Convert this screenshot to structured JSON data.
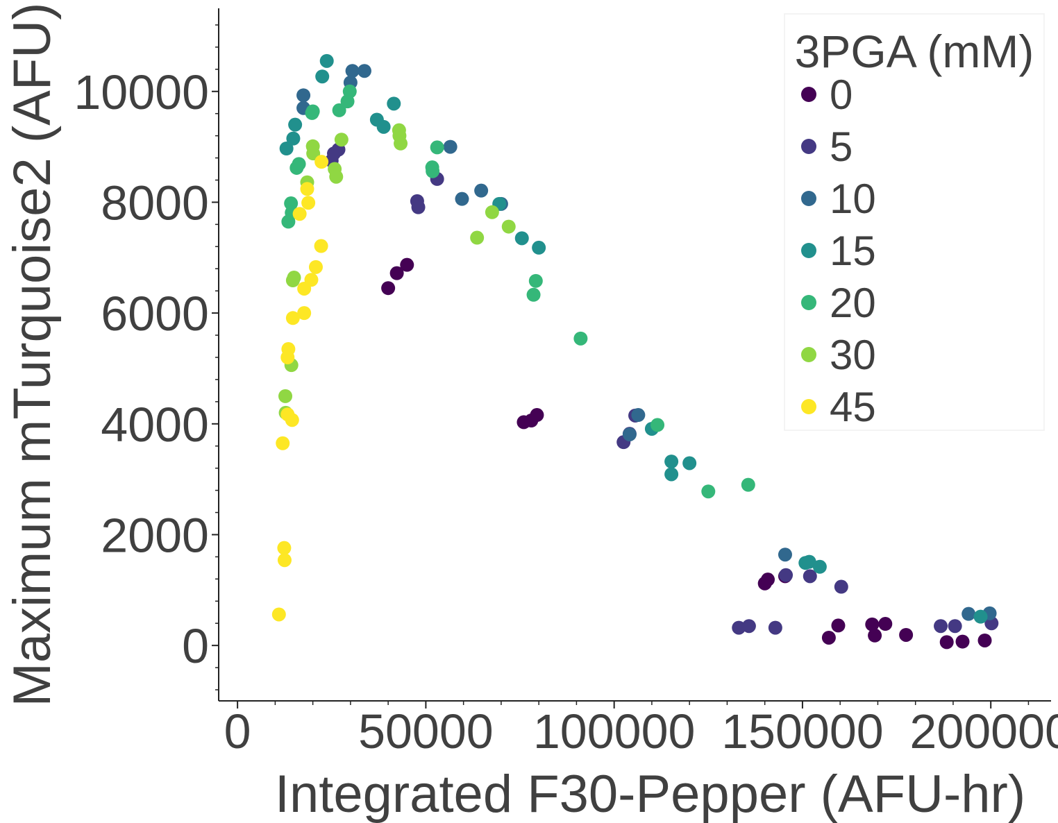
{
  "chart_data": {
    "type": "scatter",
    "xlabel": "Integrated F30-Pepper (AFU-hr)",
    "ylabel": "Maximum mTurquoise2 (AFU)",
    "xlim": [
      -5000,
      216000
    ],
    "ylim": [
      -1000,
      11500
    ],
    "xticks": [
      0,
      50000,
      100000,
      150000,
      200000
    ],
    "yticks": [
      0,
      2000,
      4000,
      6000,
      8000,
      10000
    ],
    "xtick_labels": [
      "0",
      "50000",
      "100000",
      "150000",
      "200000"
    ],
    "ytick_labels": [
      "0",
      "2000",
      "4000",
      "6000",
      "8000",
      "10000"
    ],
    "grid": false,
    "legend": {
      "title": "3PGA (mM)",
      "placement": "top-right"
    },
    "series": [
      {
        "name": "0",
        "color": "#440154",
        "points": [
          [
            40000,
            6450
          ],
          [
            42300,
            6720
          ],
          [
            45000,
            6870
          ],
          [
            76000,
            4030
          ],
          [
            78000,
            4060
          ],
          [
            79500,
            4160
          ],
          [
            140000,
            1120
          ],
          [
            140800,
            1190
          ],
          [
            145400,
            1250
          ],
          [
            157000,
            140
          ],
          [
            159500,
            360
          ],
          [
            168500,
            380
          ],
          [
            169200,
            180
          ],
          [
            172000,
            390
          ],
          [
            177500,
            190
          ],
          [
            188300,
            60
          ],
          [
            192500,
            70
          ],
          [
            198400,
            90
          ]
        ]
      },
      {
        "name": "5",
        "color": "#443983",
        "points": [
          [
            25000,
            8750
          ],
          [
            25600,
            8880
          ],
          [
            26800,
            8950
          ],
          [
            47700,
            8020
          ],
          [
            48000,
            7910
          ],
          [
            53000,
            8420
          ],
          [
            102500,
            3670
          ],
          [
            104100,
            3820
          ],
          [
            105600,
            4150
          ],
          [
            142800,
            320
          ],
          [
            145600,
            1270
          ],
          [
            152000,
            1250
          ],
          [
            133100,
            320
          ],
          [
            135800,
            350
          ],
          [
            160300,
            1060
          ],
          [
            186700,
            350
          ],
          [
            190500,
            350
          ],
          [
            200200,
            400
          ]
        ]
      },
      {
        "name": "10",
        "color": "#31688e",
        "points": [
          [
            17500,
            9930
          ],
          [
            17500,
            9700
          ],
          [
            30000,
            10160
          ],
          [
            30500,
            10370
          ],
          [
            33700,
            10370
          ],
          [
            56500,
            9000
          ],
          [
            59600,
            8060
          ],
          [
            64700,
            8210
          ],
          [
            70000,
            7970
          ],
          [
            104100,
            3810
          ],
          [
            106400,
            4160
          ],
          [
            145400,
            1640
          ],
          [
            194100,
            570
          ],
          [
            199700,
            580
          ]
        ]
      },
      {
        "name": "15",
        "color": "#21908d",
        "points": [
          [
            13000,
            8970
          ],
          [
            14800,
            9150
          ],
          [
            15300,
            9400
          ],
          [
            22500,
            10270
          ],
          [
            23700,
            10550
          ],
          [
            37000,
            9490
          ],
          [
            38800,
            9360
          ],
          [
            41500,
            9780
          ],
          [
            69500,
            7970
          ],
          [
            75500,
            7350
          ],
          [
            80000,
            7180
          ],
          [
            110000,
            3910
          ],
          [
            115200,
            3320
          ],
          [
            115200,
            3090
          ],
          [
            120000,
            3290
          ],
          [
            150800,
            1490
          ],
          [
            151800,
            1510
          ],
          [
            154600,
            1420
          ],
          [
            197300,
            520
          ]
        ]
      },
      {
        "name": "20",
        "color": "#35b779",
        "points": [
          [
            13500,
            7650
          ],
          [
            14200,
            7980
          ],
          [
            14400,
            7810
          ],
          [
            15700,
            8620
          ],
          [
            16300,
            8690
          ],
          [
            19800,
            9610
          ],
          [
            20000,
            9640
          ],
          [
            27000,
            9660
          ],
          [
            29200,
            9820
          ],
          [
            29800,
            10000
          ],
          [
            53000,
            8990
          ],
          [
            51700,
            8630
          ],
          [
            51800,
            8560
          ],
          [
            78600,
            6330
          ],
          [
            79200,
            6580
          ],
          [
            91100,
            5540
          ],
          [
            111500,
            3980
          ],
          [
            125000,
            2780
          ],
          [
            135600,
            2900
          ]
        ]
      },
      {
        "name": "30",
        "color": "#90d743",
        "points": [
          [
            12700,
            4500
          ],
          [
            12800,
            4200
          ],
          [
            14300,
            5060
          ],
          [
            14700,
            6590
          ],
          [
            15000,
            6640
          ],
          [
            18500,
            8360
          ],
          [
            20000,
            9010
          ],
          [
            20100,
            8880
          ],
          [
            25800,
            8600
          ],
          [
            26200,
            8460
          ],
          [
            27600,
            9130
          ],
          [
            42900,
            9300
          ],
          [
            43000,
            9200
          ],
          [
            43300,
            9060
          ],
          [
            63600,
            7360
          ],
          [
            67600,
            7820
          ],
          [
            72000,
            7560
          ]
        ]
      },
      {
        "name": "45",
        "color": "#fde725",
        "points": [
          [
            11000,
            560
          ],
          [
            12000,
            3650
          ],
          [
            12400,
            1760
          ],
          [
            12500,
            1540
          ],
          [
            13300,
            4170
          ],
          [
            13300,
            5200
          ],
          [
            13500,
            5350
          ],
          [
            14500,
            4070
          ],
          [
            14700,
            5910
          ],
          [
            16500,
            7790
          ],
          [
            17700,
            6000
          ],
          [
            17700,
            6440
          ],
          [
            18500,
            8240
          ],
          [
            18800,
            7990
          ],
          [
            19600,
            6600
          ],
          [
            20800,
            6830
          ],
          [
            22200,
            7210
          ],
          [
            22300,
            8730
          ]
        ]
      }
    ]
  }
}
